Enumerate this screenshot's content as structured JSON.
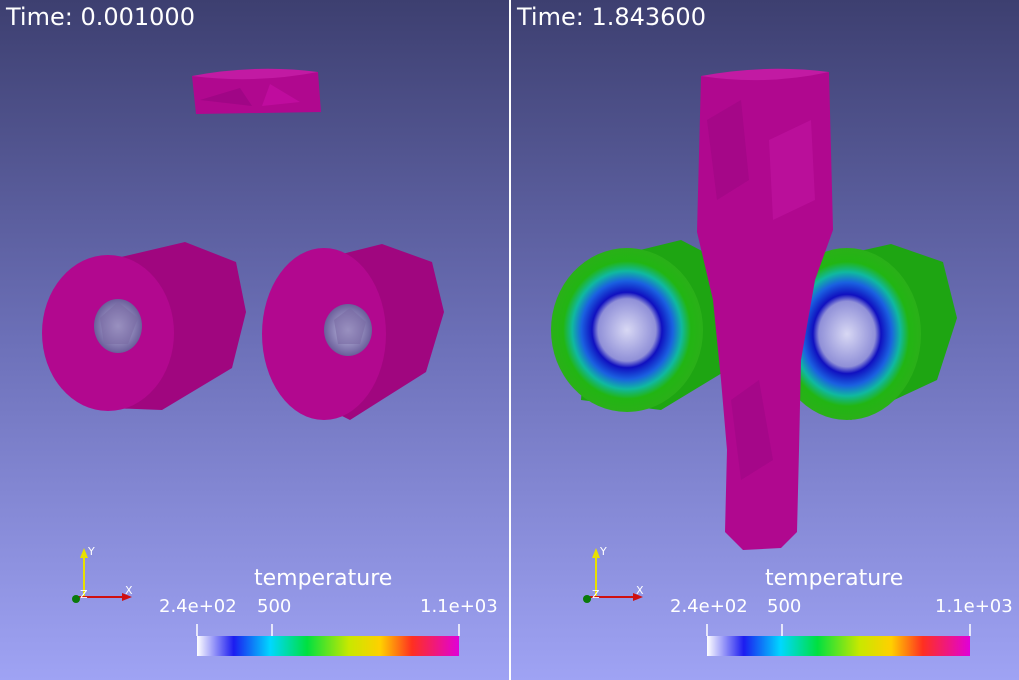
{
  "views": [
    {
      "time_label": "Time: 0.001000",
      "colorbar": {
        "title": "temperature",
        "min_label": "2.4e+02",
        "mid_label": "500",
        "max_label": "1.1e+03"
      },
      "axes": {
        "x": "X",
        "y": "Y",
        "z": "Z"
      }
    },
    {
      "time_label": "Time: 1.843600",
      "colorbar": {
        "title": "temperature",
        "min_label": "2.4e+02",
        "mid_label": "500",
        "max_label": "1.1e+03"
      },
      "axes": {
        "x": "X",
        "y": "Y",
        "z": "Z"
      }
    }
  ],
  "colors": {
    "background_top": "#3c3f6f",
    "background_bottom": "#9ea2f3",
    "magenta": "#b0088f",
    "green": "#22b513",
    "blue_ring": "#1a18c8"
  }
}
